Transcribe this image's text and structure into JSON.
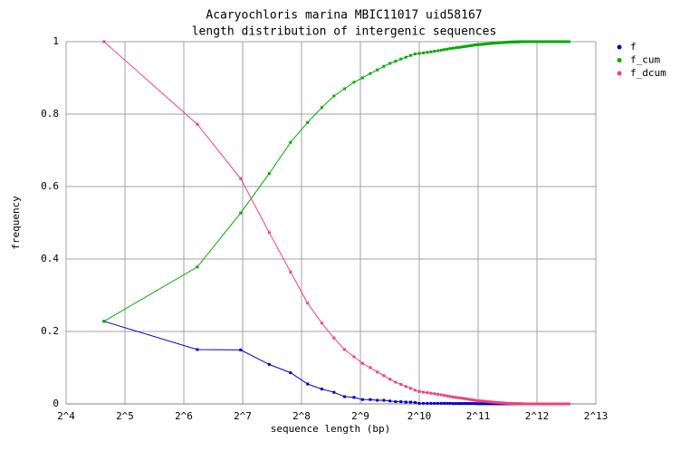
{
  "chart_data": {
    "type": "line",
    "title": "Acaryochloris marina MBIC11017 uid58167",
    "subtitle": "length distribution of intergenic sequences",
    "x_label": "sequence length (bp)",
    "y_label": "frequency",
    "xscale": "log",
    "xlog_base": 2,
    "xlim": [
      16,
      8192
    ],
    "xticks": [
      {
        "value": 16,
        "label": "2^4"
      },
      {
        "value": 32,
        "label": "2^5"
      },
      {
        "value": 64,
        "label": "2^6"
      },
      {
        "value": 128,
        "label": "2^7"
      },
      {
        "value": 256,
        "label": "2^8"
      },
      {
        "value": 512,
        "label": "2^9"
      },
      {
        "value": 1024,
        "label": "2^10"
      },
      {
        "value": 2048,
        "label": "2^11"
      },
      {
        "value": 4096,
        "label": "2^12"
      },
      {
        "value": 8192,
        "label": "2^13"
      }
    ],
    "ylim": [
      0,
      1
    ],
    "yticks": [
      0,
      0.2,
      0.4,
      0.6,
      0.8,
      1
    ],
    "grid": true,
    "legend": "right",
    "x": [
      25,
      75,
      125,
      175,
      225,
      275,
      325,
      375,
      425,
      475,
      525,
      575,
      625,
      675,
      725,
      775,
      825,
      875,
      925,
      975,
      1025,
      1075,
      1125,
      1175,
      1225,
      1275,
      1325,
      1375,
      1425,
      1475,
      1525,
      1575,
      1625,
      1675,
      1725,
      1775,
      1825,
      1875,
      1925,
      1975,
      2025,
      2075,
      2125,
      2175,
      2225,
      2275,
      2325,
      2375,
      2425,
      2475,
      2525,
      2575,
      2625,
      2675,
      2725,
      2775,
      2825,
      2875,
      2925,
      2975,
      3025,
      3075,
      3125,
      3175,
      3225,
      3275,
      3325,
      3375,
      3425,
      3475,
      3525,
      3575,
      3625,
      3675,
      3725,
      3775,
      3825,
      3875,
      3925,
      3975,
      4025,
      4075,
      4125,
      4175,
      4225,
      4275,
      4325,
      4375,
      4425,
      4475,
      4525,
      4575,
      4625,
      4675,
      4725,
      4775,
      4825,
      4875,
      4925,
      4975,
      5025,
      5075,
      5125,
      5175,
      5225,
      5275,
      5325,
      5375,
      5425,
      5475,
      5525,
      5575,
      5625,
      5675,
      5725,
      5775,
      5825,
      5875,
      5925,
      5975
    ],
    "series": [
      {
        "name": "f",
        "color": "#0000c8",
        "values": [
          0.228,
          0.15,
          0.149,
          0.109,
          0.086,
          0.055,
          0.041,
          0.032,
          0.02,
          0.018,
          0.012,
          0.012,
          0.01,
          0.01,
          0.008,
          0.006,
          0.006,
          0.005,
          0.005,
          0.004,
          0.0015,
          0.0015,
          0.0015,
          0.0015,
          0.0015,
          0.0015,
          0.0015,
          0.0015,
          0.0015,
          0.0015,
          0.001,
          0.001,
          0.001,
          0.001,
          0.001,
          0.001,
          0.001,
          0.001,
          0.001,
          0.001,
          0.0005,
          0.0005,
          0.0005,
          0.0005,
          0.0005,
          0.0005,
          0.0005,
          0.0005,
          0.0005,
          0.0005,
          0.0003,
          0.0003,
          0.0003,
          0.0003,
          0.0003,
          0.0003,
          0.0003,
          0.0003,
          0.0003,
          0.0003,
          0.0001,
          0.0001,
          0.0001,
          0.0001,
          0.0001,
          0.0001,
          0.0001,
          0.0001,
          0.0001,
          0.0001,
          0,
          0,
          0,
          0,
          0,
          0,
          0,
          0,
          0,
          0,
          0,
          0,
          0,
          0,
          0,
          0,
          0,
          0,
          0,
          0,
          0,
          0,
          0,
          0,
          0,
          0,
          0,
          0,
          0,
          0,
          0,
          0,
          0,
          0,
          0,
          0,
          0,
          0,
          0,
          0,
          0,
          0,
          0,
          0,
          0,
          0,
          0,
          0,
          0,
          0
        ]
      },
      {
        "name": "f_cum",
        "color": "#00a800",
        "values": [
          0.228,
          0.378,
          0.527,
          0.636,
          0.722,
          0.777,
          0.818,
          0.85,
          0.87,
          0.888,
          0.9,
          0.912,
          0.922,
          0.932,
          0.94,
          0.946,
          0.952,
          0.957,
          0.962,
          0.966,
          0.9675,
          0.969,
          0.9705,
          0.972,
          0.9735,
          0.975,
          0.9765,
          0.978,
          0.9795,
          0.981,
          0.982,
          0.983,
          0.984,
          0.985,
          0.986,
          0.987,
          0.988,
          0.989,
          0.99,
          0.991,
          0.9915,
          0.992,
          0.9925,
          0.993,
          0.9935,
          0.994,
          0.9945,
          0.995,
          0.9955,
          0.996,
          0.9963,
          0.9966,
          0.9969,
          0.9972,
          0.9975,
          0.9978,
          0.9981,
          0.9984,
          0.9987,
          0.999,
          0.9991,
          0.9992,
          0.9993,
          0.9994,
          0.9995,
          0.9996,
          0.9997,
          0.9998,
          0.9999,
          1,
          1,
          1,
          1,
          1,
          1,
          1,
          1,
          1,
          1,
          1,
          1,
          1,
          1,
          1,
          1,
          1,
          1,
          1,
          1,
          1,
          1,
          1,
          1,
          1,
          1,
          1,
          1,
          1,
          1,
          1,
          1,
          1,
          1,
          1,
          1,
          1,
          1,
          1,
          1,
          1,
          1,
          1,
          1,
          1,
          1,
          1,
          1,
          1,
          1,
          1
        ]
      },
      {
        "name": "f_dcum",
        "color": "#f0407a",
        "values": [
          1,
          0.772,
          0.622,
          0.473,
          0.364,
          0.278,
          0.223,
          0.182,
          0.15,
          0.13,
          0.112,
          0.1,
          0.088,
          0.078,
          0.068,
          0.06,
          0.054,
          0.048,
          0.043,
          0.038,
          0.034,
          0.0325,
          0.031,
          0.0295,
          0.028,
          0.0265,
          0.025,
          0.0235,
          0.022,
          0.0205,
          0.019,
          0.018,
          0.017,
          0.016,
          0.015,
          0.014,
          0.013,
          0.012,
          0.011,
          0.01,
          0.009,
          0.0085,
          0.008,
          0.0075,
          0.007,
          0.0065,
          0.006,
          0.0055,
          0.005,
          0.0045,
          0.004,
          0.0037,
          0.0034,
          0.0031,
          0.0028,
          0.0025,
          0.0022,
          0.0019,
          0.0016,
          0.0013,
          0.001,
          0.0009,
          0.0008,
          0.0007,
          0.0006,
          0.0005,
          0.0004,
          0.0003,
          0.0002,
          0.0001,
          0,
          0,
          0,
          0,
          0,
          0,
          0,
          0,
          0,
          0,
          0,
          0,
          0,
          0,
          0,
          0,
          0,
          0,
          0,
          0,
          0,
          0,
          0,
          0,
          0,
          0,
          0,
          0,
          0,
          0,
          0,
          0,
          0,
          0,
          0,
          0,
          0,
          0,
          0,
          0,
          0,
          0,
          0,
          0,
          0,
          0,
          0,
          0,
          0,
          0
        ]
      }
    ]
  }
}
